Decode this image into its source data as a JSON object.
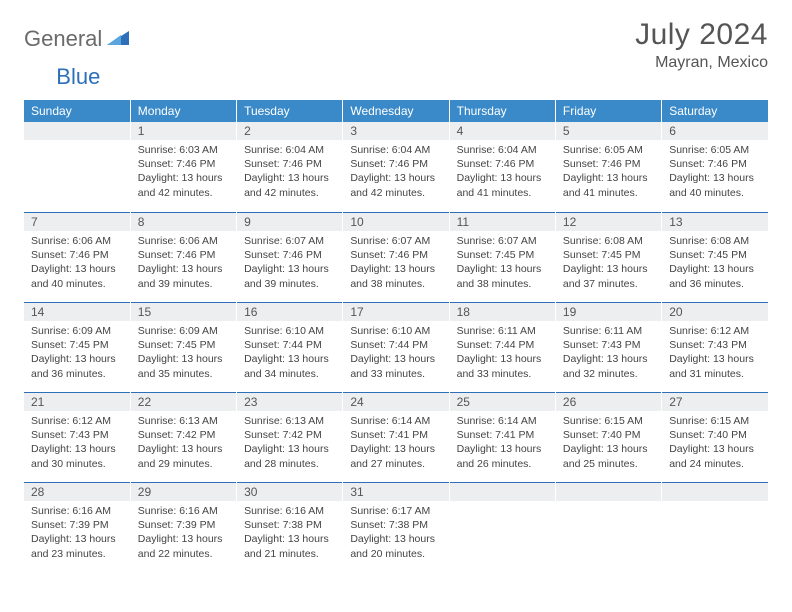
{
  "brand": {
    "part1": "General",
    "part2": "Blue"
  },
  "title": "July 2024",
  "location": "Mayran, Mexico",
  "colors": {
    "header_bg": "#3a8ac9",
    "header_text": "#ffffff",
    "daynum_bg": "#eceef0",
    "border_accent": "#2d6fb8",
    "body_text": "#444444",
    "title_text": "#555555",
    "logo_gray": "#6b6b6b",
    "logo_blue": "#2d6fb8"
  },
  "day_headers": [
    "Sunday",
    "Monday",
    "Tuesday",
    "Wednesday",
    "Thursday",
    "Friday",
    "Saturday"
  ],
  "first_weekday_index": 1,
  "days": [
    {
      "n": 1,
      "sunrise": "6:03 AM",
      "sunset": "7:46 PM",
      "daylight": "13 hours and 42 minutes."
    },
    {
      "n": 2,
      "sunrise": "6:04 AM",
      "sunset": "7:46 PM",
      "daylight": "13 hours and 42 minutes."
    },
    {
      "n": 3,
      "sunrise": "6:04 AM",
      "sunset": "7:46 PM",
      "daylight": "13 hours and 42 minutes."
    },
    {
      "n": 4,
      "sunrise": "6:04 AM",
      "sunset": "7:46 PM",
      "daylight": "13 hours and 41 minutes."
    },
    {
      "n": 5,
      "sunrise": "6:05 AM",
      "sunset": "7:46 PM",
      "daylight": "13 hours and 41 minutes."
    },
    {
      "n": 6,
      "sunrise": "6:05 AM",
      "sunset": "7:46 PM",
      "daylight": "13 hours and 40 minutes."
    },
    {
      "n": 7,
      "sunrise": "6:06 AM",
      "sunset": "7:46 PM",
      "daylight": "13 hours and 40 minutes."
    },
    {
      "n": 8,
      "sunrise": "6:06 AM",
      "sunset": "7:46 PM",
      "daylight": "13 hours and 39 minutes."
    },
    {
      "n": 9,
      "sunrise": "6:07 AM",
      "sunset": "7:46 PM",
      "daylight": "13 hours and 39 minutes."
    },
    {
      "n": 10,
      "sunrise": "6:07 AM",
      "sunset": "7:46 PM",
      "daylight": "13 hours and 38 minutes."
    },
    {
      "n": 11,
      "sunrise": "6:07 AM",
      "sunset": "7:45 PM",
      "daylight": "13 hours and 38 minutes."
    },
    {
      "n": 12,
      "sunrise": "6:08 AM",
      "sunset": "7:45 PM",
      "daylight": "13 hours and 37 minutes."
    },
    {
      "n": 13,
      "sunrise": "6:08 AM",
      "sunset": "7:45 PM",
      "daylight": "13 hours and 36 minutes."
    },
    {
      "n": 14,
      "sunrise": "6:09 AM",
      "sunset": "7:45 PM",
      "daylight": "13 hours and 36 minutes."
    },
    {
      "n": 15,
      "sunrise": "6:09 AM",
      "sunset": "7:45 PM",
      "daylight": "13 hours and 35 minutes."
    },
    {
      "n": 16,
      "sunrise": "6:10 AM",
      "sunset": "7:44 PM",
      "daylight": "13 hours and 34 minutes."
    },
    {
      "n": 17,
      "sunrise": "6:10 AM",
      "sunset": "7:44 PM",
      "daylight": "13 hours and 33 minutes."
    },
    {
      "n": 18,
      "sunrise": "6:11 AM",
      "sunset": "7:44 PM",
      "daylight": "13 hours and 33 minutes."
    },
    {
      "n": 19,
      "sunrise": "6:11 AM",
      "sunset": "7:43 PM",
      "daylight": "13 hours and 32 minutes."
    },
    {
      "n": 20,
      "sunrise": "6:12 AM",
      "sunset": "7:43 PM",
      "daylight": "13 hours and 31 minutes."
    },
    {
      "n": 21,
      "sunrise": "6:12 AM",
      "sunset": "7:43 PM",
      "daylight": "13 hours and 30 minutes."
    },
    {
      "n": 22,
      "sunrise": "6:13 AM",
      "sunset": "7:42 PM",
      "daylight": "13 hours and 29 minutes."
    },
    {
      "n": 23,
      "sunrise": "6:13 AM",
      "sunset": "7:42 PM",
      "daylight": "13 hours and 28 minutes."
    },
    {
      "n": 24,
      "sunrise": "6:14 AM",
      "sunset": "7:41 PM",
      "daylight": "13 hours and 27 minutes."
    },
    {
      "n": 25,
      "sunrise": "6:14 AM",
      "sunset": "7:41 PM",
      "daylight": "13 hours and 26 minutes."
    },
    {
      "n": 26,
      "sunrise": "6:15 AM",
      "sunset": "7:40 PM",
      "daylight": "13 hours and 25 minutes."
    },
    {
      "n": 27,
      "sunrise": "6:15 AM",
      "sunset": "7:40 PM",
      "daylight": "13 hours and 24 minutes."
    },
    {
      "n": 28,
      "sunrise": "6:16 AM",
      "sunset": "7:39 PM",
      "daylight": "13 hours and 23 minutes."
    },
    {
      "n": 29,
      "sunrise": "6:16 AM",
      "sunset": "7:39 PM",
      "daylight": "13 hours and 22 minutes."
    },
    {
      "n": 30,
      "sunrise": "6:16 AM",
      "sunset": "7:38 PM",
      "daylight": "13 hours and 21 minutes."
    },
    {
      "n": 31,
      "sunrise": "6:17 AM",
      "sunset": "7:38 PM",
      "daylight": "13 hours and 20 minutes."
    }
  ],
  "labels": {
    "sunrise": "Sunrise:",
    "sunset": "Sunset:",
    "daylight": "Daylight:"
  }
}
